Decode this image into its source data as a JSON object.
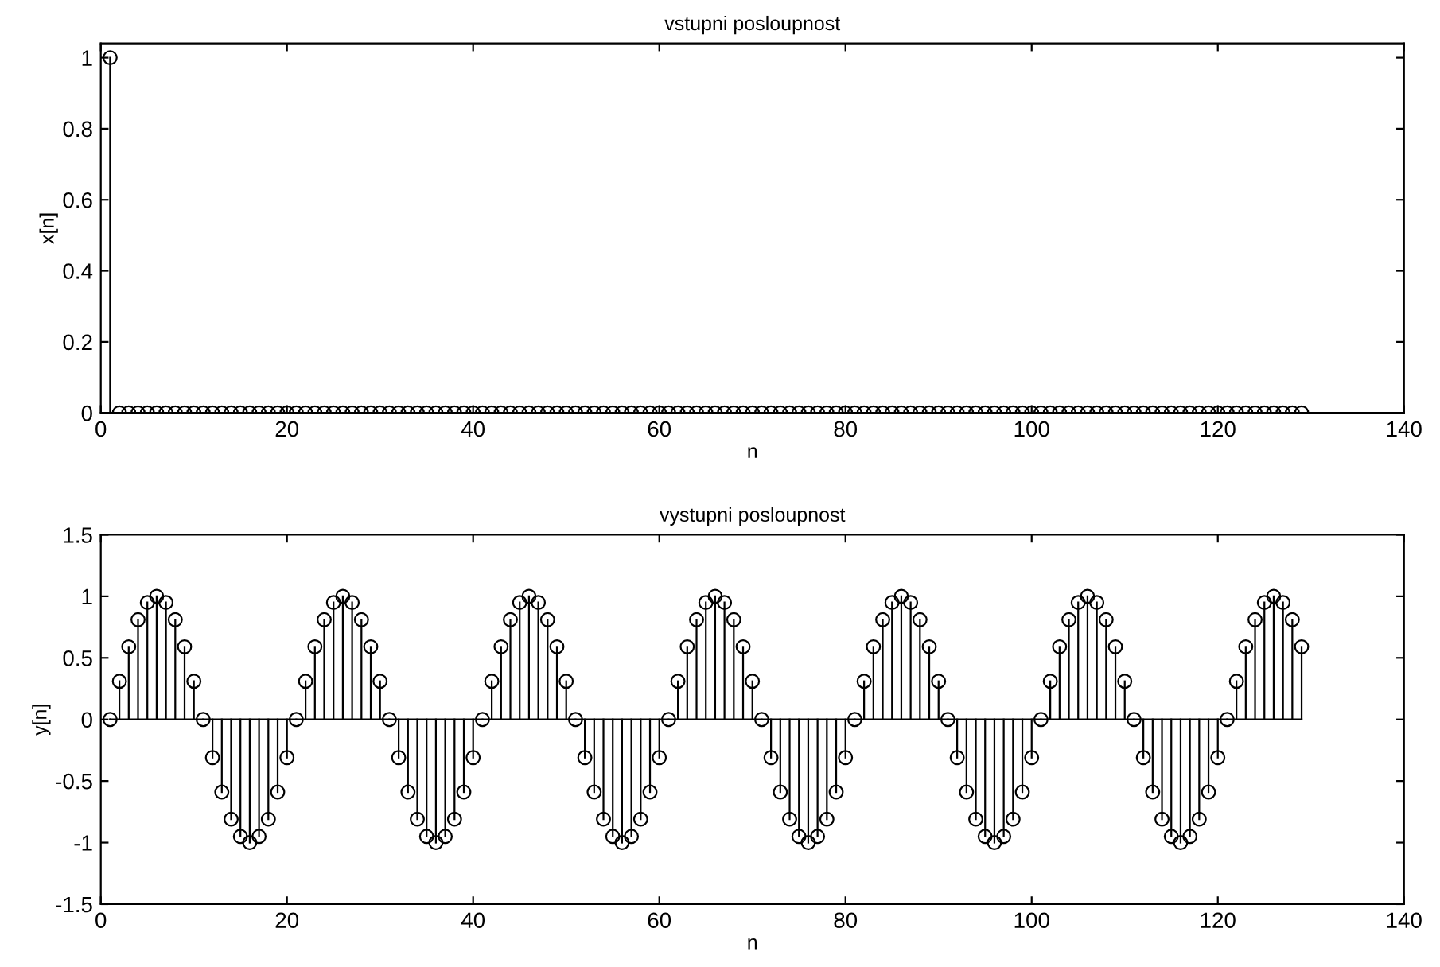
{
  "chart_data": [
    {
      "type": "lollipop",
      "title": "vstupni posloupnost",
      "xlabel": "n",
      "ylabel": "x[n]",
      "color": "#000000",
      "marker": "circle",
      "grid": false,
      "x": [
        1,
        2,
        3,
        4,
        5,
        6,
        7,
        8,
        9,
        10,
        11,
        12,
        13,
        14,
        15,
        16,
        17,
        18,
        19,
        20,
        21,
        22,
        23,
        24,
        25,
        26,
        27,
        28,
        29,
        30,
        31,
        32,
        33,
        34,
        35,
        36,
        37,
        38,
        39,
        40,
        41,
        42,
        43,
        44,
        45,
        46,
        47,
        48,
        49,
        50,
        51,
        52,
        53,
        54,
        55,
        56,
        57,
        58,
        59,
        60,
        61,
        62,
        63,
        64,
        65,
        66,
        67,
        68,
        69,
        70,
        71,
        72,
        73,
        74,
        75,
        76,
        77,
        78,
        79,
        80,
        81,
        82,
        83,
        84,
        85,
        86,
        87,
        88,
        89,
        90,
        91,
        92,
        93,
        94,
        95,
        96,
        97,
        98,
        99,
        100,
        101,
        102,
        103,
        104,
        105,
        106,
        107,
        108,
        109,
        110,
        111,
        112,
        113,
        114,
        115,
        116,
        117,
        118,
        119,
        120,
        121,
        122,
        123,
        124,
        125,
        126,
        127,
        128,
        129
      ],
      "values": [
        1,
        0,
        0,
        0,
        0,
        0,
        0,
        0,
        0,
        0,
        0,
        0,
        0,
        0,
        0,
        0,
        0,
        0,
        0,
        0,
        0,
        0,
        0,
        0,
        0,
        0,
        0,
        0,
        0,
        0,
        0,
        0,
        0,
        0,
        0,
        0,
        0,
        0,
        0,
        0,
        0,
        0,
        0,
        0,
        0,
        0,
        0,
        0,
        0,
        0,
        0,
        0,
        0,
        0,
        0,
        0,
        0,
        0,
        0,
        0,
        0,
        0,
        0,
        0,
        0,
        0,
        0,
        0,
        0,
        0,
        0,
        0,
        0,
        0,
        0,
        0,
        0,
        0,
        0,
        0,
        0,
        0,
        0,
        0,
        0,
        0,
        0,
        0,
        0,
        0,
        0,
        0,
        0,
        0,
        0,
        0,
        0,
        0,
        0,
        0,
        0,
        0,
        0,
        0,
        0,
        0,
        0,
        0,
        0,
        0,
        0,
        0,
        0,
        0,
        0,
        0,
        0,
        0,
        0,
        0,
        0,
        0,
        0,
        0,
        0,
        0,
        0,
        0,
        0
      ],
      "xlim": [
        0,
        140
      ],
      "xticks": [
        0,
        20,
        40,
        60,
        80,
        100,
        120,
        140
      ],
      "ylim": [
        0,
        1.04
      ],
      "yticks": [
        0,
        0.2,
        0.4,
        0.6,
        0.8,
        1
      ]
    },
    {
      "type": "lollipop",
      "title": "vystupni posloupnost",
      "xlabel": "n",
      "ylabel": "y[n]",
      "color": "#000000",
      "marker": "circle",
      "grid": false,
      "x": [
        1,
        2,
        3,
        4,
        5,
        6,
        7,
        8,
        9,
        10,
        11,
        12,
        13,
        14,
        15,
        16,
        17,
        18,
        19,
        20,
        21,
        22,
        23,
        24,
        25,
        26,
        27,
        28,
        29,
        30,
        31,
        32,
        33,
        34,
        35,
        36,
        37,
        38,
        39,
        40,
        41,
        42,
        43,
        44,
        45,
        46,
        47,
        48,
        49,
        50,
        51,
        52,
        53,
        54,
        55,
        56,
        57,
        58,
        59,
        60,
        61,
        62,
        63,
        64,
        65,
        66,
        67,
        68,
        69,
        70,
        71,
        72,
        73,
        74,
        75,
        76,
        77,
        78,
        79,
        80,
        81,
        82,
        83,
        84,
        85,
        86,
        87,
        88,
        89,
        90,
        91,
        92,
        93,
        94,
        95,
        96,
        97,
        98,
        99,
        100,
        101,
        102,
        103,
        104,
        105,
        106,
        107,
        108,
        109,
        110,
        111,
        112,
        113,
        114,
        115,
        116,
        117,
        118,
        119,
        120,
        121,
        122,
        123,
        124,
        125,
        126,
        127,
        128,
        129
      ],
      "values": [
        0,
        0.31,
        0.59,
        0.81,
        0.95,
        1,
        0.95,
        0.81,
        0.59,
        0.31,
        0,
        -0.31,
        -0.59,
        -0.81,
        -0.95,
        -1,
        -0.95,
        -0.81,
        -0.59,
        -0.31,
        0,
        0.31,
        0.59,
        0.81,
        0.95,
        1,
        0.95,
        0.81,
        0.59,
        0.31,
        0,
        -0.31,
        -0.59,
        -0.81,
        -0.95,
        -1,
        -0.95,
        -0.81,
        -0.59,
        -0.31,
        0,
        0.31,
        0.59,
        0.81,
        0.95,
        1,
        0.95,
        0.81,
        0.59,
        0.31,
        0,
        -0.31,
        -0.59,
        -0.81,
        -0.95,
        -1,
        -0.95,
        -0.81,
        -0.59,
        -0.31,
        0,
        0.31,
        0.59,
        0.81,
        0.95,
        1,
        0.95,
        0.81,
        0.59,
        0.31,
        0,
        -0.31,
        -0.59,
        -0.81,
        -0.95,
        -1,
        -0.95,
        -0.81,
        -0.59,
        -0.31,
        0,
        0.31,
        0.59,
        0.81,
        0.95,
        1,
        0.95,
        0.81,
        0.59,
        0.31,
        0,
        -0.31,
        -0.59,
        -0.81,
        -0.95,
        -1,
        -0.95,
        -0.81,
        -0.59,
        -0.31,
        0,
        0.31,
        0.59,
        0.81,
        0.95,
        1,
        0.95,
        0.81,
        0.59,
        0.31,
        0,
        -0.31,
        -0.59,
        -0.81,
        -0.95,
        -1,
        -0.95,
        -0.81,
        -0.59,
        -0.31,
        0,
        0.31,
        0.59,
        0.81,
        0.95,
        1,
        0.95,
        0.81,
        0.59
      ],
      "ref_lines": [
        {
          "axis": "y",
          "value": 0,
          "color": "#000000"
        }
      ],
      "xlim": [
        0,
        140
      ],
      "xticks": [
        0,
        20,
        40,
        60,
        80,
        100,
        120,
        140
      ],
      "ylim": [
        -1.5,
        1.5
      ],
      "yticks": [
        -1.5,
        -1,
        -0.5,
        0,
        0.5,
        1,
        1.5
      ]
    }
  ]
}
